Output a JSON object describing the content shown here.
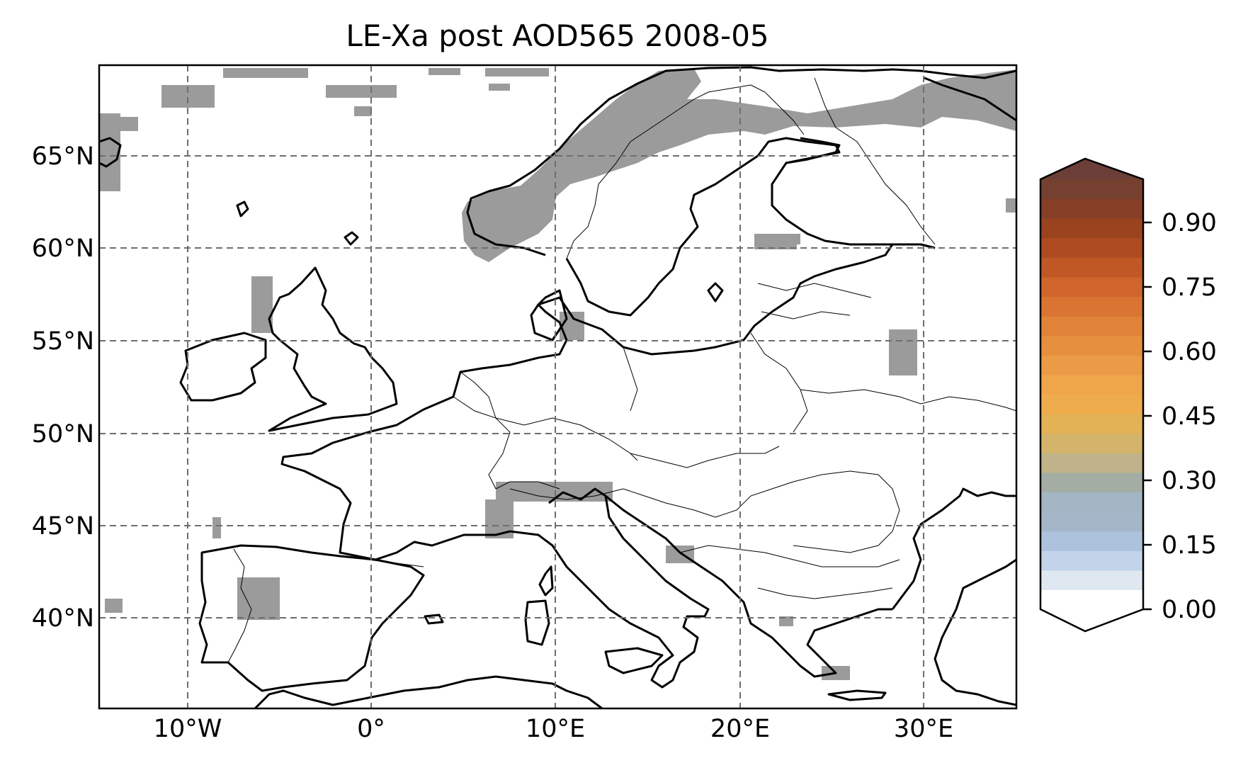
{
  "title": "LE-Xa post AOD565 2008-05",
  "map": {
    "extent": {
      "lon_min": -15,
      "lon_max": 35,
      "lat_min": 35,
      "lat_max": 70
    },
    "gridlines": true,
    "gridline_style": "dashed",
    "lon_ticks": [
      {
        "value": -10,
        "label": "10°W"
      },
      {
        "value": 0,
        "label": "0°"
      },
      {
        "value": 10,
        "label": "10°E"
      },
      {
        "value": 20,
        "label": "20°E"
      },
      {
        "value": 30,
        "label": "30°E"
      }
    ],
    "lat_ticks": [
      {
        "value": 65,
        "label": "65°N"
      },
      {
        "value": 60,
        "label": "60°N"
      },
      {
        "value": 55,
        "label": "55°N"
      },
      {
        "value": 50,
        "label": "50°N"
      },
      {
        "value": 45,
        "label": "45°N"
      },
      {
        "value": 40,
        "label": "40°N"
      }
    ],
    "missing_data_color": "#9b9b9b",
    "coastline_color": "#000000",
    "border_color": "#000000"
  },
  "colorbar": {
    "min": 0.0,
    "max": 1.0,
    "extend": "both",
    "tick_labels": [
      {
        "value": 0.0,
        "label": "0.00"
      },
      {
        "value": 0.15,
        "label": "0.15"
      },
      {
        "value": 0.3,
        "label": "0.30"
      },
      {
        "value": 0.45,
        "label": "0.45"
      },
      {
        "value": 0.6,
        "label": "0.60"
      },
      {
        "value": 0.75,
        "label": "0.75"
      },
      {
        "value": 0.9,
        "label": "0.90"
      }
    ],
    "colors": [
      "#ffffff",
      "#dfe7f0",
      "#c2d4ea",
      "#adc2dc",
      "#a3b7c9",
      "#a2b5c3",
      "#a3ada3",
      "#c0b389",
      "#d4b46a",
      "#e3b257",
      "#eeac4d",
      "#efa64b",
      "#eb9a45",
      "#e58f3f",
      "#e08339",
      "#d97433",
      "#cf652d",
      "#c05826",
      "#ae4b21",
      "#9a431f",
      "#873f27",
      "#75402f"
    ],
    "over_color": "#6b3f37",
    "under_color": "#ffffff"
  }
}
